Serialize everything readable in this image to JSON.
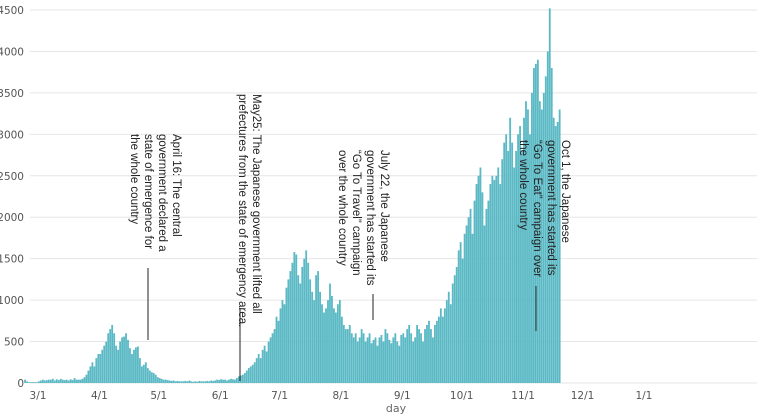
{
  "chart_data": {
    "type": "bar",
    "title": "",
    "xlabel": "day",
    "ylabel": "",
    "ylim": [
      0,
      4500
    ],
    "y_ticks": [
      0,
      500,
      1000,
      1500,
      2000,
      2500,
      3000,
      3500,
      4000,
      4500
    ],
    "x_tick_labels": [
      "3/1",
      "4/1",
      "5/1",
      "6/1",
      "7/1",
      "8/1",
      "9/1",
      "10/1",
      "11/1",
      "12/1",
      "1/1"
    ],
    "x_tick_days": [
      0,
      31,
      61,
      92,
      122,
      153,
      184,
      214,
      245,
      275,
      306
    ],
    "start_day_offset": -7,
    "colors": {
      "bar": "#5ab9c4",
      "grid": "#e6e6e6",
      "text": "#222222"
    },
    "values": [
      40,
      20,
      10,
      10,
      10,
      10,
      10,
      20,
      30,
      40,
      30,
      35,
      40,
      40,
      50,
      30,
      45,
      35,
      50,
      40,
      35,
      40,
      30,
      45,
      35,
      60,
      40,
      40,
      40,
      50,
      70,
      100,
      150,
      200,
      250,
      200,
      300,
      350,
      350,
      400,
      450,
      500,
      600,
      650,
      700,
      600,
      450,
      400,
      500,
      550,
      560,
      600,
      520,
      420,
      350,
      400,
      430,
      440,
      300,
      200,
      220,
      250,
      180,
      150,
      130,
      120,
      100,
      70,
      60,
      50,
      40,
      40,
      35,
      30,
      25,
      30,
      20,
      25,
      20,
      20,
      20,
      25,
      20,
      30,
      20,
      15,
      20,
      15,
      25,
      20,
      20,
      20,
      25,
      20,
      30,
      25,
      30,
      40,
      35,
      45,
      40,
      40,
      30,
      40,
      50,
      45,
      40,
      60,
      80,
      90,
      100,
      120,
      150,
      180,
      200,
      220,
      250,
      300,
      350,
      300,
      400,
      450,
      380,
      500,
      550,
      600,
      650,
      800,
      750,
      900,
      1000,
      950,
      1150,
      1250,
      1350,
      1450,
      1580,
      1550,
      1300,
      1200,
      1400,
      1500,
      1600,
      1450,
      1250,
      1100,
      1000,
      1300,
      1350,
      1100,
      950,
      850,
      900,
      1000,
      1200,
      1050,
      900,
      850,
      950,
      1000,
      800,
      700,
      650,
      650,
      700,
      600,
      550,
      600,
      500,
      550,
      650,
      600,
      500,
      550,
      600,
      480,
      520,
      550,
      450,
      550,
      580,
      500,
      650,
      600,
      520,
      480,
      550,
      600,
      500,
      450,
      580,
      600,
      550,
      650,
      700,
      600,
      500,
      550,
      700,
      650,
      600,
      500,
      650,
      700,
      750,
      650,
      550,
      700,
      750,
      800,
      900,
      800,
      900,
      1000,
      1100,
      950,
      1200,
      1300,
      1400,
      1600,
      1700,
      1500,
      1800,
      1900,
      2000,
      2100,
      1800,
      2200,
      2400,
      2500,
      2600,
      2300,
      1900,
      2100,
      2200,
      2400,
      2500,
      2450,
      2500,
      2600,
      2400,
      2700,
      2900,
      3000,
      2800,
      3200,
      2900,
      2600,
      2800,
      3000,
      3100,
      2800,
      3200,
      3400,
      3300,
      3000,
      3500,
      3800,
      3850,
      3900,
      3400,
      3300,
      3500,
      3700,
      4000,
      4520,
      3800,
      3200,
      3100,
      3150,
      3300
    ]
  },
  "annotations": [
    {
      "lines": [
        "April 16: The central",
        "government declared a",
        "state of emergence for",
        "the whole country"
      ]
    },
    {
      "lines": [
        "May25: The Japanese government lifted all",
        "prefectures from the state of emergency area."
      ]
    },
    {
      "lines": [
        "July 22, the Japanese",
        "government has started its",
        "“Go To Travel” campaign",
        "over the whole country"
      ]
    },
    {
      "lines": [
        "Oct 1, the Japanese",
        "government has started its",
        "“Go To Eat” campaign over",
        "the whole country"
      ]
    }
  ]
}
